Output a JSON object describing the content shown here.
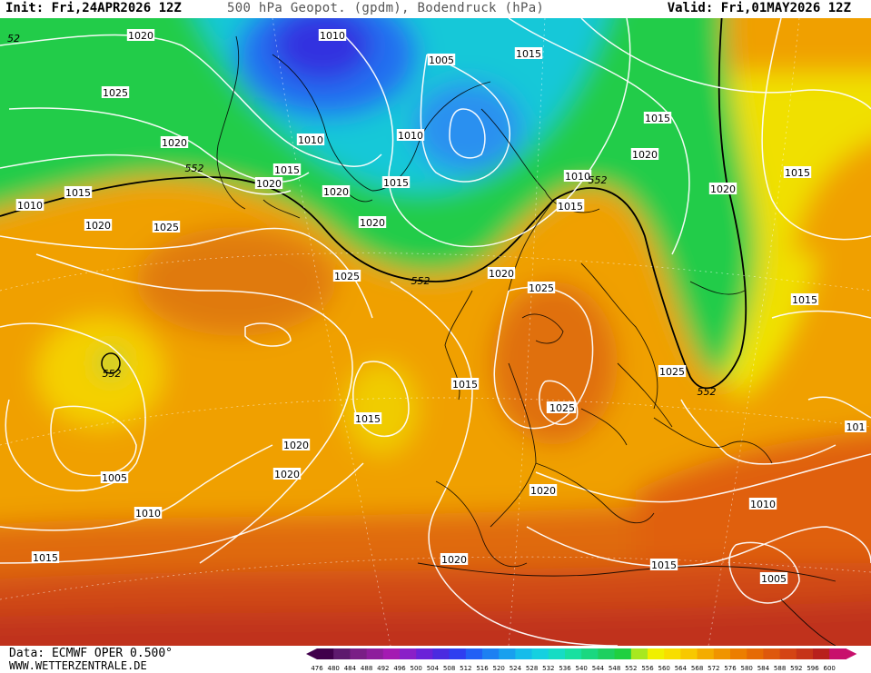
{
  "header": {
    "title": "500 hPa Geopot. (gpdm), Bodendruck (hPa)",
    "init": "Init: Fri,24APR2026 12Z",
    "valid": "Valid: Fri,01MAY2026 12Z"
  },
  "footer": {
    "credit": "Data: ECMWF OPER 0.500°",
    "site": "WWW.WETTERZENTRALE.DE"
  },
  "legend": {
    "levels": [
      "476",
      "480",
      "484",
      "488",
      "492",
      "496",
      "500",
      "504",
      "508",
      "512",
      "516",
      "520",
      "524",
      "528",
      "532",
      "536",
      "540",
      "544",
      "548",
      "552",
      "556",
      "560",
      "564",
      "568",
      "572",
      "576",
      "580",
      "584",
      "588",
      "592",
      "596",
      "600"
    ],
    "colors": [
      "#40004b",
      "#5e1a6e",
      "#7a1f86",
      "#8e1e9c",
      "#a41ab2",
      "#8a1fc8",
      "#6a22d8",
      "#4a2be0",
      "#2f3ef0",
      "#2260f5",
      "#1d80f2",
      "#18a0ee",
      "#16bcea",
      "#15d0e0",
      "#16dcc4",
      "#18e0a0",
      "#1ad880",
      "#1ed060",
      "#20d040",
      "#a8e820",
      "#f0f000",
      "#f8de00",
      "#f8c800",
      "#f4ac00",
      "#f09400",
      "#ec7e00",
      "#e66a04",
      "#de580c",
      "#d44414",
      "#c63418",
      "#b8201c",
      "#c8106c"
    ]
  },
  "map": {
    "pressure_labels": [
      "1020",
      "1010",
      "1005",
      "1015",
      "1025",
      "1020",
      "1010",
      "1015",
      "1010",
      "1015",
      "1020",
      "1020",
      "1015",
      "1015",
      "1020",
      "1010",
      "1015",
      "1020",
      "1025",
      "1020",
      "1025",
      "1010",
      "1015",
      "1010",
      "1020",
      "1025",
      "1025",
      "1015",
      "1015",
      "1025",
      "1020",
      "1025",
      "1015",
      "1020",
      "1020",
      "1020",
      "1005",
      "1010",
      "1015",
      "1020",
      "1010",
      "1015",
      "1005",
      "1015",
      "101",
      "52",
      "552",
      "552",
      "552",
      "552",
      "552"
    ]
  },
  "colors": {
    "contour": "#ffffff",
    "h552_line": "#000000",
    "coast": "#000000"
  }
}
